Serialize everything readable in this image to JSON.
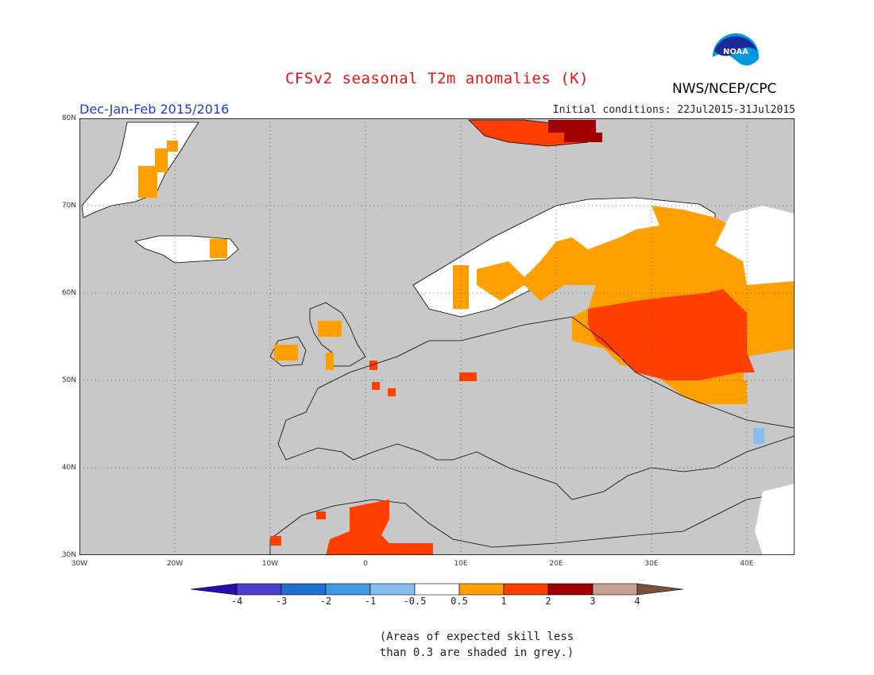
{
  "title": "CFSv2 seasonal T2m anomalies (K)",
  "organization": "NWS/NCEP/CPC",
  "logo_text": "NOAA",
  "period": "Dec-Jan-Feb 2015/2016",
  "initial_conditions": "Initial conditions: 22Jul2015-31Jul2015",
  "map": {
    "lat_ticks": [
      "80N",
      "70N",
      "60N",
      "50N",
      "40N",
      "30N"
    ],
    "lon_ticks": [
      "30W",
      "20W",
      "10W",
      "0",
      "10E",
      "20E",
      "30E",
      "40E"
    ],
    "land_color": "#c8c8c8",
    "grid": true
  },
  "colorbar": {
    "labels": [
      "-4",
      "-3",
      "-2",
      "-1",
      "-0.5",
      "0.5",
      "1",
      "2",
      "3",
      "4"
    ],
    "colors": [
      "#2a0cb0",
      "#4a40d0",
      "#1f6fd0",
      "#3f98e8",
      "#84bff0",
      "#ffffff",
      "#ff9f00",
      "#ff3f00",
      "#a00000",
      "#c8a090",
      "#7a5040"
    ]
  },
  "note": [
    "(Areas of expected skill less",
    "than 0.3 are shaded in grey.)"
  ]
}
